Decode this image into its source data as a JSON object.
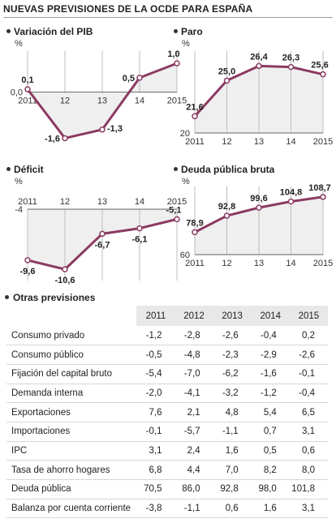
{
  "title": "NUEVAS PREVISIONES DE LA OCDE PARA ESPAÑA",
  "chart_data": [
    {
      "type": "line",
      "title": "Variación del PIB",
      "unit": "%",
      "categories": [
        "2011",
        "12",
        "13",
        "14",
        "2015"
      ],
      "values": [
        0.1,
        -1.6,
        -1.3,
        0.5,
        1.0
      ],
      "value_labels": [
        "0,1",
        "-1,6",
        "-1,3",
        "0,5",
        "1,0"
      ],
      "baseline_label": "0,0",
      "ylim": [
        -1.7,
        1.2
      ],
      "baseline": 0,
      "x_axis_position": "bottom",
      "label_pos": [
        "above",
        "left",
        "right",
        "left",
        "above"
      ]
    },
    {
      "type": "line",
      "title": "Paro",
      "unit": "%",
      "categories": [
        "2011",
        "12",
        "13",
        "14",
        "2015"
      ],
      "values": [
        21.6,
        25.0,
        26.4,
        26.3,
        25.6
      ],
      "value_labels": [
        "21,6",
        "25,0",
        "26,4",
        "26,3",
        "25,6"
      ],
      "baseline_label": "20",
      "ylim": [
        20,
        27.2
      ],
      "baseline": 20,
      "x_axis_position": "bottom",
      "label_pos": [
        "above",
        "above",
        "above",
        "above",
        "above"
      ]
    },
    {
      "type": "line",
      "title": "Déficit",
      "unit": "%",
      "categories": [
        "2011",
        "12",
        "13",
        "14",
        "2015"
      ],
      "values": [
        -9.6,
        -10.6,
        -6.7,
        -6.1,
        -5.1
      ],
      "value_labels": [
        "-9,6",
        "-10,6",
        "-6,7",
        "-6,1",
        "-5,1"
      ],
      "baseline_label": "-4",
      "ylim": [
        -11.3,
        -4
      ],
      "baseline": -4,
      "x_axis_position": "top",
      "label_pos": [
        "below",
        "below",
        "below",
        "below",
        "above"
      ]
    },
    {
      "type": "line",
      "title": "Deuda pública bruta",
      "unit": "%",
      "categories": [
        "2011",
        "12",
        "13",
        "14",
        "2015"
      ],
      "values": [
        78.9,
        92.8,
        99.6,
        104.8,
        108.7
      ],
      "value_labels": [
        "78,9",
        "92,8",
        "99,6",
        "104,8",
        "108,7"
      ],
      "baseline_label": "60",
      "ylim": [
        60,
        112
      ],
      "baseline": 60,
      "x_axis_position": "bottom",
      "label_pos": [
        "above",
        "above",
        "above",
        "above",
        "above"
      ]
    }
  ],
  "table": {
    "title": "Otras previsiones",
    "columns": [
      "2011",
      "2012",
      "2013",
      "2014",
      "2015"
    ],
    "rows": [
      {
        "label": "Consumo privado",
        "values": [
          "-1,2",
          "-2,8",
          "-2,6",
          "-0,4",
          "0,2"
        ]
      },
      {
        "label": "Consumo público",
        "values": [
          "-0,5",
          "-4,8",
          "-2,3",
          "-2,9",
          "-2,6"
        ]
      },
      {
        "label": "Fijación del capital bruto",
        "values": [
          "-5,4",
          "-7,0",
          "-6,2",
          "-1,6",
          "-0,1"
        ]
      },
      {
        "label": "Demanda interna",
        "values": [
          "-2,0",
          "-4,1",
          "-3,2",
          "-1,2",
          "-0,4"
        ]
      },
      {
        "label": "Exportaciones",
        "values": [
          "7,6",
          "2,1",
          "4,8",
          "5,4",
          "6,5"
        ]
      },
      {
        "label": "Importaciones",
        "values": [
          "-0,1",
          "-5,7",
          "-1,1",
          "0,7",
          "3,1"
        ]
      },
      {
        "label": "IPC",
        "values": [
          "3,1",
          "2,4",
          "1,6",
          "0,5",
          "0,6"
        ]
      },
      {
        "label": "Tasa de ahorro hogares",
        "values": [
          "6,8",
          "4,4",
          "7,0",
          "8,2",
          "8,0"
        ]
      },
      {
        "label": "Deuda pública",
        "values": [
          "70,5",
          "86,0",
          "92,8",
          "98,0",
          "101,8"
        ]
      },
      {
        "label": "Balanza por cuenta corriente",
        "values": [
          "-3,8",
          "-1,1",
          "0,6",
          "1,6",
          "3,1"
        ]
      }
    ]
  },
  "colors": {
    "line": "#8b3a62",
    "fill": "#efefef",
    "grid": "#bdbdbd",
    "axis": "#666666",
    "header_bg": "#e8e8e8"
  }
}
